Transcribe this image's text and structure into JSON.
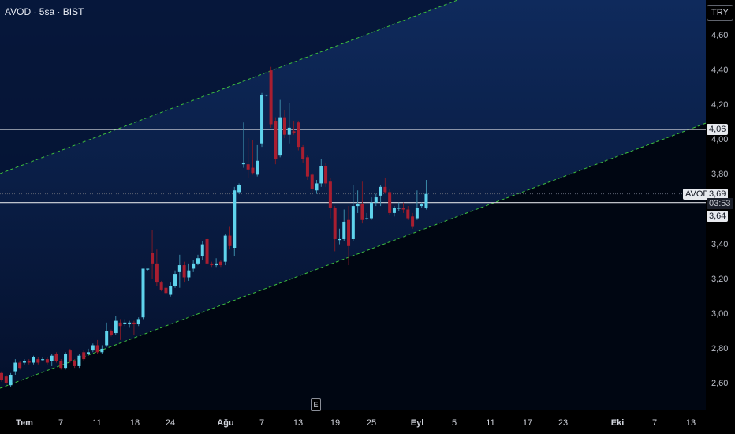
{
  "header": {
    "title": "AVOD · 5sa · BIST"
  },
  "currency": "TRY",
  "event_marker": "E",
  "colors": {
    "up": "#5fd3ec",
    "down": "#a81e30",
    "channel": "#3dbf3d",
    "hline": "#d8dae0"
  },
  "chart_data": {
    "type": "candlestick",
    "title": "AVOD · 5sa · BIST",
    "ylim": [
      2.5,
      4.8
    ],
    "y_ticks": [
      "4,60",
      "4,40",
      "4,20",
      "4,00",
      "3,80",
      "3,40",
      "3,20",
      "3,00",
      "2,80",
      "2,60"
    ],
    "y_tick_values": [
      4.6,
      4.4,
      4.2,
      4.0,
      3.8,
      3.4,
      3.2,
      3.0,
      2.8,
      2.6
    ],
    "x_ticks": [
      {
        "label": "Tem",
        "month": true
      },
      {
        "label": "7"
      },
      {
        "label": "11"
      },
      {
        "label": "18"
      },
      {
        "label": "24"
      },
      {
        "label": "Ağu",
        "month": true
      },
      {
        "label": "7"
      },
      {
        "label": "13"
      },
      {
        "label": "19"
      },
      {
        "label": "25"
      },
      {
        "label": "Eyl",
        "month": true
      },
      {
        "label": "5"
      },
      {
        "label": "11"
      },
      {
        "label": "17"
      },
      {
        "label": "23"
      },
      {
        "label": "Eki",
        "month": true
      },
      {
        "label": "7"
      },
      {
        "label": "13"
      }
    ],
    "candles": [
      [
        2.66,
        2.67,
        2.61,
        2.62
      ],
      [
        2.64,
        2.65,
        2.59,
        2.6
      ],
      [
        2.59,
        2.66,
        2.58,
        2.65
      ],
      [
        2.67,
        2.74,
        2.65,
        2.72
      ],
      [
        2.72,
        2.73,
        2.68,
        2.69
      ],
      [
        2.72,
        2.74,
        2.71,
        2.73
      ],
      [
        2.73,
        2.74,
        2.71,
        2.72
      ],
      [
        2.72,
        2.76,
        2.71,
        2.75
      ],
      [
        2.74,
        2.75,
        2.71,
        2.72
      ],
      [
        2.74,
        2.75,
        2.73,
        2.74
      ],
      [
        2.74,
        2.75,
        2.71,
        2.72
      ],
      [
        2.73,
        2.77,
        2.7,
        2.76
      ],
      [
        2.77,
        2.78,
        2.72,
        2.73
      ],
      [
        2.73,
        2.74,
        2.68,
        2.69
      ],
      [
        2.69,
        2.78,
        2.68,
        2.77
      ],
      [
        2.79,
        2.8,
        2.72,
        2.73
      ],
      [
        2.73,
        2.74,
        2.69,
        2.7
      ],
      [
        2.7,
        2.77,
        2.69,
        2.76
      ],
      [
        2.78,
        2.79,
        2.73,
        2.74
      ],
      [
        2.77,
        2.8,
        2.76,
        2.78
      ],
      [
        2.79,
        2.83,
        2.78,
        2.82
      ],
      [
        2.82,
        2.85,
        2.77,
        2.78
      ],
      [
        2.78,
        2.82,
        2.77,
        2.8
      ],
      [
        2.82,
        2.95,
        2.81,
        2.9
      ],
      [
        2.9,
        2.91,
        2.87,
        2.88
      ],
      [
        2.89,
        2.99,
        2.88,
        2.96
      ],
      [
        2.95,
        2.97,
        2.85,
        2.93
      ],
      [
        2.95,
        2.97,
        2.93,
        2.95
      ],
      [
        2.94,
        2.96,
        2.92,
        2.95
      ],
      [
        2.95,
        2.96,
        2.88,
        2.94
      ],
      [
        2.94,
        2.98,
        2.93,
        2.97
      ],
      [
        2.98,
        3.26,
        2.97,
        3.26
      ],
      [
        3.26,
        3.26,
        3.25,
        3.26
      ],
      [
        3.35,
        3.48,
        3.2,
        3.29
      ],
      [
        3.29,
        3.37,
        3.16,
        3.18
      ],
      [
        3.18,
        3.19,
        3.13,
        3.14
      ],
      [
        3.15,
        3.16,
        3.11,
        3.12
      ],
      [
        3.11,
        3.18,
        3.1,
        3.16
      ],
      [
        3.16,
        3.25,
        3.15,
        3.23
      ],
      [
        3.24,
        3.34,
        3.15,
        3.28
      ],
      [
        3.28,
        3.3,
        3.18,
        3.21
      ],
      [
        3.21,
        3.29,
        3.19,
        3.25
      ],
      [
        3.26,
        3.31,
        3.24,
        3.29
      ],
      [
        3.29,
        3.34,
        3.28,
        3.32
      ],
      [
        3.33,
        3.42,
        3.31,
        3.4
      ],
      [
        3.43,
        3.44,
        3.28,
        3.29
      ],
      [
        3.29,
        3.3,
        3.27,
        3.28
      ],
      [
        3.28,
        3.32,
        3.27,
        3.29
      ],
      [
        3.3,
        3.31,
        3.27,
        3.28
      ],
      [
        3.3,
        3.46,
        3.28,
        3.45
      ],
      [
        3.45,
        3.5,
        3.37,
        3.39
      ],
      [
        3.38,
        3.73,
        3.33,
        3.71
      ],
      [
        3.7,
        3.75,
        3.69,
        3.74
      ],
      [
        3.86,
        4.1,
        3.84,
        3.87
      ],
      [
        3.86,
        4.01,
        3.78,
        3.83
      ],
      [
        3.84,
        4.0,
        3.8,
        3.81
      ],
      [
        3.8,
        3.97,
        3.79,
        3.88
      ],
      [
        3.98,
        4.27,
        3.96,
        4.26
      ],
      [
        4.26,
        4.26,
        4.25,
        4.26
      ],
      [
        4.4,
        4.42,
        4.07,
        4.09
      ],
      [
        4.11,
        4.13,
        3.86,
        3.89
      ],
      [
        3.91,
        4.23,
        3.9,
        4.13
      ],
      [
        4.13,
        4.17,
        4.01,
        4.03
      ],
      [
        4.03,
        4.21,
        3.98,
        4.07
      ],
      [
        4.05,
        4.11,
        4.03,
        4.04
      ],
      [
        4.1,
        4.11,
        3.94,
        3.96
      ],
      [
        3.96,
        3.97,
        3.87,
        3.89
      ],
      [
        3.9,
        3.91,
        3.77,
        3.79
      ],
      [
        3.8,
        3.81,
        3.7,
        3.72
      ],
      [
        3.71,
        3.77,
        3.69,
        3.75
      ],
      [
        3.75,
        3.89,
        3.73,
        3.85
      ],
      [
        3.85,
        3.87,
        3.73,
        3.75
      ],
      [
        3.76,
        3.78,
        3.55,
        3.61
      ],
      [
        3.61,
        3.62,
        3.36,
        3.43
      ],
      [
        3.43,
        3.49,
        3.4,
        3.43
      ],
      [
        3.43,
        3.6,
        3.42,
        3.53
      ],
      [
        3.54,
        3.62,
        3.28,
        3.39
      ],
      [
        3.43,
        3.74,
        3.42,
        3.62
      ],
      [
        3.62,
        3.71,
        3.58,
        3.63
      ],
      [
        3.63,
        3.76,
        3.52,
        3.54
      ],
      [
        3.55,
        3.58,
        3.54,
        3.55
      ],
      [
        3.55,
        3.67,
        3.54,
        3.64
      ],
      [
        3.64,
        3.69,
        3.62,
        3.67
      ],
      [
        3.68,
        3.74,
        3.62,
        3.73
      ],
      [
        3.73,
        3.78,
        3.69,
        3.7
      ],
      [
        3.7,
        3.72,
        3.57,
        3.58
      ],
      [
        3.58,
        3.62,
        3.56,
        3.61
      ],
      [
        3.61,
        3.64,
        3.59,
        3.61
      ],
      [
        3.61,
        3.64,
        3.58,
        3.6
      ],
      [
        3.6,
        3.62,
        3.54,
        3.55
      ],
      [
        3.56,
        3.58,
        3.49,
        3.5
      ],
      [
        3.55,
        3.71,
        3.54,
        3.61
      ],
      [
        3.62,
        3.64,
        3.61,
        3.63
      ],
      [
        3.61,
        3.77,
        3.6,
        3.69
      ]
    ],
    "channel_upper": {
      "start_price": 3.81,
      "slope_note": "parallel dashed channel"
    },
    "channel_lower": {
      "start_price": 2.57
    },
    "horizontal_levels": [
      {
        "value": 4.06,
        "label": "4,06"
      },
      {
        "value": 3.64,
        "label": "3,64"
      }
    ],
    "last_price": {
      "symbol": "AVOD",
      "value": 3.69,
      "label": "3,69",
      "countdown": "03:53"
    }
  }
}
